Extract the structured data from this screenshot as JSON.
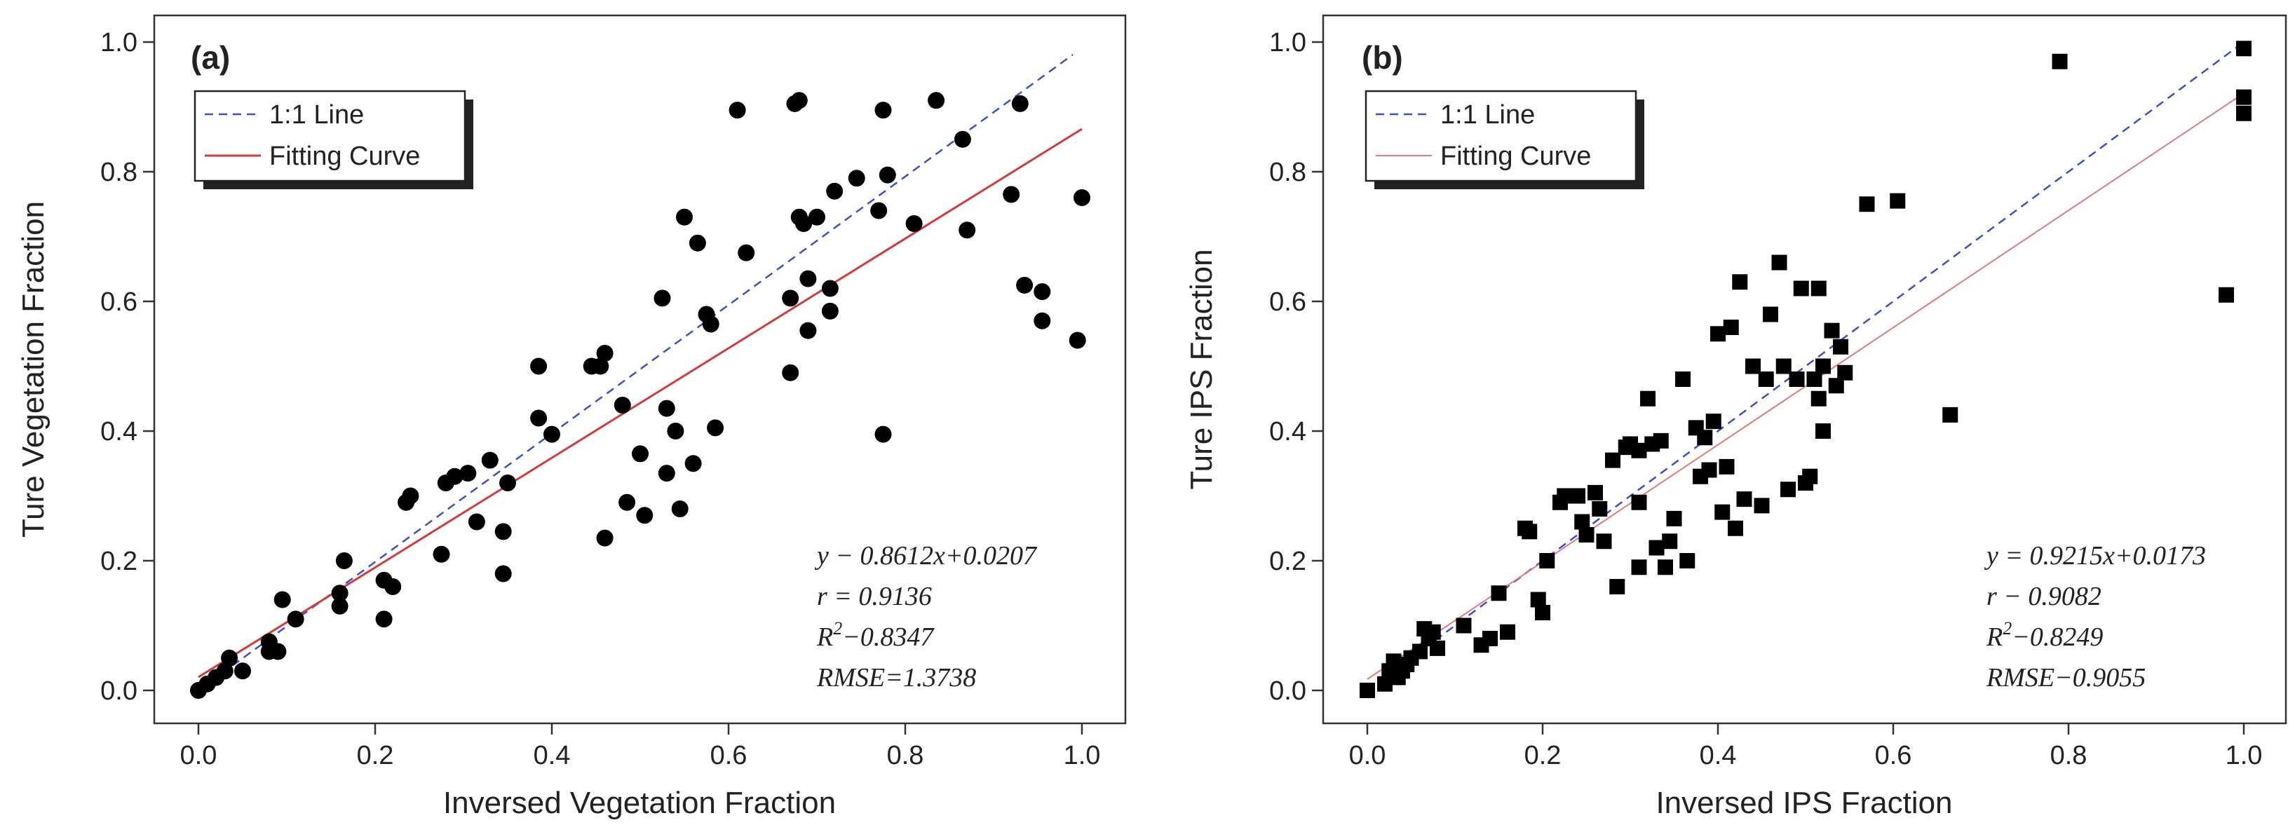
{
  "chart_data": [
    {
      "type": "scatter",
      "panel_label": "(a)",
      "xlabel": "Inversed Vegetation Fraction",
      "ylabel": "Ture Vegetation Fraction",
      "xlim": [
        -0.05,
        1.05
      ],
      "ylim": [
        -0.07,
        1.05
      ],
      "xticks": [
        "0.0",
        "0.2",
        "0.4",
        "0.6",
        "0.8",
        "1.0"
      ],
      "yticks": [
        "0.0",
        "0.2",
        "0.4",
        "0.6",
        "0.8",
        "1.0"
      ],
      "marker": "circle",
      "legend": [
        {
          "label": "1:1 Line",
          "style": "dashed",
          "color": "#3a4fc9"
        },
        {
          "label": "Fitting Curve",
          "style": "solid",
          "color": "#d33a3a"
        }
      ],
      "one_to_one": {
        "x": [
          0,
          0.98
        ],
        "y": [
          0,
          0.98
        ]
      },
      "fit_line": {
        "slope": 0.8612,
        "intercept": 0.0207,
        "x": [
          0,
          1.0
        ]
      },
      "stats": {
        "equation": "y − 0.8612x+0.0207",
        "r": "r = 0.9136",
        "r2_prefix": "R",
        "r2_sup": "2",
        "r2_suffix": "−0.8347",
        "rmse": "RMSE=1.3738"
      },
      "points": [
        [
          0.0,
          0.0
        ],
        [
          0.01,
          0.01
        ],
        [
          0.02,
          0.02
        ],
        [
          0.03,
          0.03
        ],
        [
          0.035,
          0.05
        ],
        [
          0.05,
          0.03
        ],
        [
          0.08,
          0.06
        ],
        [
          0.08,
          0.075
        ],
        [
          0.09,
          0.06
        ],
        [
          0.095,
          0.14
        ],
        [
          0.11,
          0.11
        ],
        [
          0.16,
          0.13
        ],
        [
          0.16,
          0.15
        ],
        [
          0.165,
          0.2
        ],
        [
          0.21,
          0.11
        ],
        [
          0.21,
          0.17
        ],
        [
          0.22,
          0.16
        ],
        [
          0.235,
          0.29
        ],
        [
          0.24,
          0.3
        ],
        [
          0.275,
          0.21
        ],
        [
          0.28,
          0.32
        ],
        [
          0.29,
          0.33
        ],
        [
          0.305,
          0.335
        ],
        [
          0.315,
          0.26
        ],
        [
          0.33,
          0.355
        ],
        [
          0.345,
          0.245
        ],
        [
          0.35,
          0.32
        ],
        [
          0.345,
          0.18
        ],
        [
          0.385,
          0.5
        ],
        [
          0.385,
          0.42
        ],
        [
          0.4,
          0.395
        ],
        [
          0.445,
          0.5
        ],
        [
          0.455,
          0.5
        ],
        [
          0.46,
          0.52
        ],
        [
          0.46,
          0.235
        ],
        [
          0.48,
          0.44
        ],
        [
          0.485,
          0.29
        ],
        [
          0.5,
          0.365
        ],
        [
          0.505,
          0.27
        ],
        [
          0.525,
          0.605
        ],
        [
          0.53,
          0.435
        ],
        [
          0.53,
          0.335
        ],
        [
          0.54,
          0.4
        ],
        [
          0.545,
          0.28
        ],
        [
          0.55,
          0.73
        ],
        [
          0.56,
          0.35
        ],
        [
          0.565,
          0.69
        ],
        [
          0.575,
          0.58
        ],
        [
          0.58,
          0.565
        ],
        [
          0.585,
          0.405
        ],
        [
          0.61,
          0.895
        ],
        [
          0.62,
          0.675
        ],
        [
          0.67,
          0.49
        ],
        [
          0.67,
          0.605
        ],
        [
          0.675,
          0.905
        ],
        [
          0.68,
          0.91
        ],
        [
          0.68,
          0.73
        ],
        [
          0.685,
          0.72
        ],
        [
          0.69,
          0.635
        ],
        [
          0.69,
          0.555
        ],
        [
          0.7,
          0.73
        ],
        [
          0.715,
          0.62
        ],
        [
          0.715,
          0.585
        ],
        [
          0.72,
          0.77
        ],
        [
          0.745,
          0.79
        ],
        [
          0.77,
          0.74
        ],
        [
          0.775,
          0.895
        ],
        [
          0.775,
          0.395
        ],
        [
          0.78,
          0.795
        ],
        [
          0.81,
          0.72
        ],
        [
          0.835,
          0.91
        ],
        [
          0.865,
          0.85
        ],
        [
          0.87,
          0.71
        ],
        [
          0.92,
          0.765
        ],
        [
          0.93,
          0.905
        ],
        [
          0.935,
          0.625
        ],
        [
          0.955,
          0.615
        ],
        [
          0.955,
          0.57
        ],
        [
          0.995,
          0.54
        ],
        [
          1.0,
          0.76
        ]
      ]
    },
    {
      "type": "scatter",
      "panel_label": "(b)",
      "xlabel": "Inversed IPS Fraction",
      "ylabel": "Ture IPS Fraction",
      "xlim": [
        -0.05,
        1.05
      ],
      "ylim": [
        -0.07,
        1.05
      ],
      "xticks": [
        "0.0",
        "0.2",
        "0.4",
        "0.6",
        "0.8",
        "1.0"
      ],
      "yticks": [
        "0.0",
        "0.2",
        "0.4",
        "0.6",
        "0.8",
        "1.0"
      ],
      "marker": "square",
      "legend": [
        {
          "label": "1:1 Line",
          "style": "dashed",
          "color": "#3a4fc9"
        },
        {
          "label": "Fitting Curve",
          "style": "solid",
          "color": "#e07a7a"
        }
      ],
      "one_to_one": {
        "x": [
          0,
          1.0
        ],
        "y": [
          0,
          1.0
        ]
      },
      "fit_line": {
        "slope": 0.9215,
        "intercept": 0.0173,
        "x": [
          0,
          1.0
        ]
      },
      "stats": {
        "equation": "y = 0.9215x+0.0173",
        "r": "r − 0.9082",
        "r2_prefix": "R",
        "r2_sup": "2",
        "r2_suffix": "−0.8249",
        "rmse": "RMSE−0.9055"
      },
      "points": [
        [
          0.0,
          0.0
        ],
        [
          0.02,
          0.01
        ],
        [
          0.025,
          0.03
        ],
        [
          0.03,
          0.045
        ],
        [
          0.035,
          0.02
        ],
        [
          0.04,
          0.03
        ],
        [
          0.045,
          0.04
        ],
        [
          0.05,
          0.05
        ],
        [
          0.06,
          0.06
        ],
        [
          0.065,
          0.095
        ],
        [
          0.07,
          0.08
        ],
        [
          0.075,
          0.09
        ],
        [
          0.08,
          0.065
        ],
        [
          0.11,
          0.1
        ],
        [
          0.13,
          0.07
        ],
        [
          0.14,
          0.08
        ],
        [
          0.15,
          0.15
        ],
        [
          0.16,
          0.09
        ],
        [
          0.18,
          0.25
        ],
        [
          0.185,
          0.245
        ],
        [
          0.195,
          0.14
        ],
        [
          0.2,
          0.12
        ],
        [
          0.205,
          0.2
        ],
        [
          0.22,
          0.29
        ],
        [
          0.225,
          0.3
        ],
        [
          0.24,
          0.3
        ],
        [
          0.245,
          0.26
        ],
        [
          0.25,
          0.24
        ],
        [
          0.26,
          0.305
        ],
        [
          0.265,
          0.28
        ],
        [
          0.27,
          0.23
        ],
        [
          0.28,
          0.355
        ],
        [
          0.285,
          0.16
        ],
        [
          0.295,
          0.375
        ],
        [
          0.3,
          0.38
        ],
        [
          0.31,
          0.37
        ],
        [
          0.31,
          0.29
        ],
        [
          0.31,
          0.19
        ],
        [
          0.32,
          0.45
        ],
        [
          0.325,
          0.38
        ],
        [
          0.33,
          0.22
        ],
        [
          0.335,
          0.385
        ],
        [
          0.34,
          0.19
        ],
        [
          0.345,
          0.23
        ],
        [
          0.35,
          0.265
        ],
        [
          0.36,
          0.48
        ],
        [
          0.365,
          0.2
        ],
        [
          0.375,
          0.405
        ],
        [
          0.38,
          0.33
        ],
        [
          0.385,
          0.39
        ],
        [
          0.39,
          0.34
        ],
        [
          0.395,
          0.415
        ],
        [
          0.4,
          0.55
        ],
        [
          0.405,
          0.275
        ],
        [
          0.41,
          0.345
        ],
        [
          0.415,
          0.56
        ],
        [
          0.42,
          0.25
        ],
        [
          0.425,
          0.63
        ],
        [
          0.43,
          0.295
        ],
        [
          0.44,
          0.5
        ],
        [
          0.45,
          0.285
        ],
        [
          0.455,
          0.48
        ],
        [
          0.46,
          0.58
        ],
        [
          0.47,
          0.66
        ],
        [
          0.475,
          0.5
        ],
        [
          0.48,
          0.31
        ],
        [
          0.49,
          0.48
        ],
        [
          0.495,
          0.62
        ],
        [
          0.5,
          0.32
        ],
        [
          0.505,
          0.33
        ],
        [
          0.51,
          0.48
        ],
        [
          0.515,
          0.62
        ],
        [
          0.515,
          0.45
        ],
        [
          0.52,
          0.4
        ],
        [
          0.52,
          0.5
        ],
        [
          0.53,
          0.555
        ],
        [
          0.535,
          0.47
        ],
        [
          0.54,
          0.53
        ],
        [
          0.545,
          0.49
        ],
        [
          0.57,
          0.75
        ],
        [
          0.605,
          0.755
        ],
        [
          0.665,
          0.425
        ],
        [
          0.79,
          0.97
        ],
        [
          0.98,
          0.61
        ],
        [
          1.0,
          0.99
        ],
        [
          1.0,
          0.915
        ],
        [
          1.0,
          0.89
        ]
      ]
    }
  ]
}
